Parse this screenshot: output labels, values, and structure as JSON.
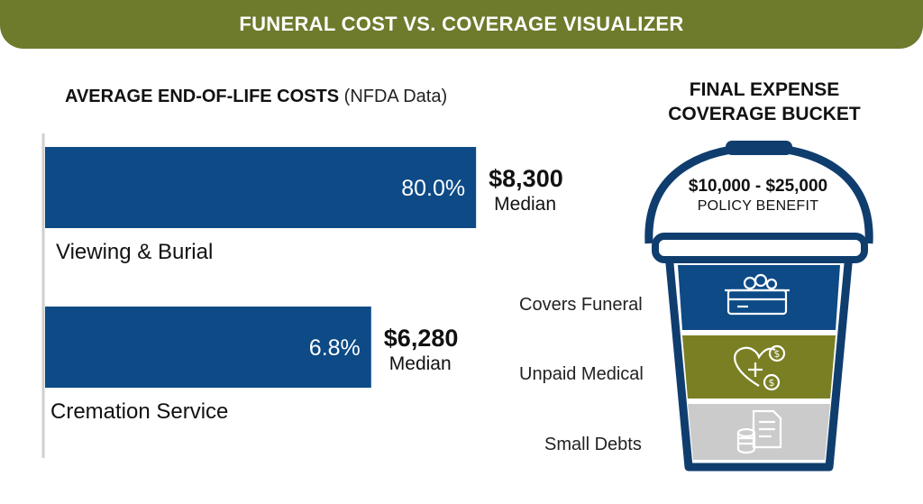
{
  "header": {
    "title": "FUNERAL COST VS. COVERAGE VISUALIZER"
  },
  "chart_heading": {
    "title": "AVERAGE END-OF-LIFE COSTS",
    "subtitle": "(NFDA Data)"
  },
  "chart_data": {
    "type": "bar",
    "orientation": "horizontal",
    "title": "AVERAGE END-OF-LIFE COSTS",
    "subtitle": "(NFDA Data)",
    "categories": [
      "Viewing & Burial",
      "Cremation Service"
    ],
    "values": [
      8300,
      6280
    ],
    "value_labels": [
      "$8,300",
      "$6,280"
    ],
    "value_caption": "Median",
    "bar_labels": [
      "80.0%",
      "6.8%"
    ],
    "xlim": [
      0,
      9200
    ],
    "bar_color": "#0d4a86",
    "grid": false
  },
  "bucket": {
    "title_line1": "FINAL EXPENSE",
    "title_line2": "COVERAGE BUCKET",
    "benefit_amount": "$10,000 - $25,000",
    "benefit_label": "POLICY BENEFIT",
    "layers": [
      {
        "label": "Covers Funeral",
        "icon": "casket-icon",
        "color": "#0d4a86"
      },
      {
        "label": "Unpaid Medical",
        "icon": "heart-medical-dollar-icon",
        "color": "#7a7f24"
      },
      {
        "label": "Small Debts",
        "icon": "document-coins-icon",
        "color": "#c9c9c9"
      }
    ]
  },
  "colors": {
    "banner": "#6e7a2c",
    "navy": "#0d4a86",
    "bucket_outline": "#0f3d6e"
  }
}
